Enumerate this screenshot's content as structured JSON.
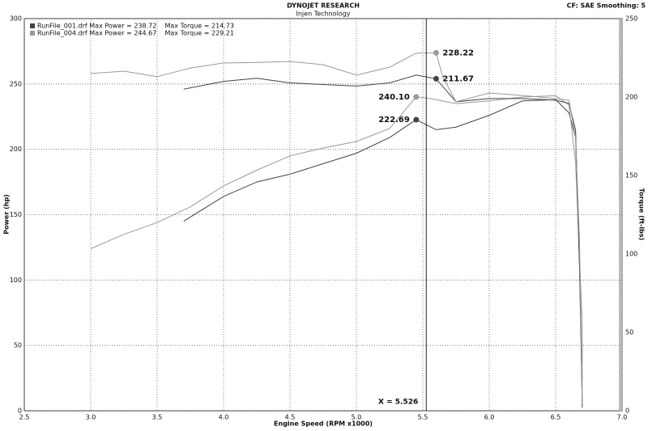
{
  "chart_data": {
    "type": "line",
    "title": "DYNOJET RESEARCH",
    "subtitle": "Injen Technology",
    "corner_note": "CF: SAE  Smoothing: 5",
    "x_label": "Engine Speed (RPM x1000)",
    "y_label": "Power (hp)",
    "y2_label": "Torque (ft-lbs)",
    "xlim": [
      2.5,
      7.0
    ],
    "ylim": [
      0,
      300
    ],
    "y2lim": [
      0,
      250
    ],
    "xticks": [
      {
        "value": 2.5,
        "label": "2.5"
      },
      {
        "value": 3,
        "label": "3.0"
      },
      {
        "value": 3.5,
        "label": "3.5"
      },
      {
        "value": 4,
        "label": "4.0"
      },
      {
        "value": 4.5,
        "label": "4.5"
      },
      {
        "value": 5,
        "label": "5.0"
      },
      {
        "value": 5.5,
        "label": "5.5"
      },
      {
        "value": 6,
        "label": "6.0"
      },
      {
        "value": 6.5,
        "label": "6.5"
      },
      {
        "value": 7,
        "label": "7.0"
      }
    ],
    "yticks": [
      0,
      50,
      100,
      150,
      200,
      250,
      300
    ],
    "y2ticks": [
      0,
      50,
      100,
      150,
      200,
      250
    ],
    "grid": true,
    "legend": [
      {
        "label": "RunFile_001.drf Max Power = 238.72    Max Torque = 214.73",
        "color": "#444444"
      },
      {
        "label": "RunFile_004.drf Max Power = 244.67    Max Torque = 229.21",
        "color": "#999999"
      }
    ],
    "series": [
      {
        "color": "#444444",
        "axis": "y",
        "x": [
          3.7,
          4.0,
          4.25,
          4.5,
          4.75,
          5.0,
          5.25,
          5.45,
          5.6,
          5.75,
          6.0,
          6.25,
          6.5,
          6.6,
          6.65,
          6.68,
          6.7
        ],
        "values": [
          145,
          164,
          175,
          181,
          189,
          197,
          209,
          222.69,
          215,
          217,
          226,
          237,
          238,
          228,
          209,
          110,
          24
        ]
      },
      {
        "color": "#999999",
        "axis": "y",
        "x": [
          3.0,
          3.25,
          3.5,
          3.75,
          4.0,
          4.25,
          4.5,
          4.75,
          5.0,
          5.25,
          5.45,
          5.55,
          5.75,
          6.0,
          6.25,
          6.5,
          6.6,
          6.65,
          6.7,
          6.7
        ],
        "values": [
          124,
          135,
          144,
          156,
          172,
          184,
          195,
          201,
          206,
          216,
          240.1,
          239,
          235,
          237,
          240,
          241,
          234,
          190,
          67,
          5
        ]
      },
      {
        "color": "#444444",
        "axis": "y2",
        "x": [
          3.7,
          4.0,
          4.25,
          4.5,
          4.75,
          5.0,
          5.25,
          5.45,
          5.6,
          5.75,
          6.0,
          6.25,
          6.5,
          6.6,
          6.65,
          6.68,
          6.7
        ],
        "values": [
          205,
          210,
          212,
          209,
          208,
          207,
          209,
          214,
          211.67,
          197,
          199,
          199,
          198,
          196,
          179,
          92,
          2
        ]
      },
      {
        "color": "#999999",
        "axis": "y2",
        "x": [
          3.0,
          3.25,
          3.5,
          3.75,
          4.0,
          4.25,
          4.5,
          4.75,
          5.0,
          5.25,
          5.45,
          5.6,
          5.65,
          5.75,
          6.0,
          6.25,
          6.5,
          6.6,
          6.65,
          6.68,
          6.7
        ],
        "values": [
          215,
          216.5,
          213,
          218.5,
          221.7,
          222,
          222.7,
          220.6,
          214,
          219,
          228,
          228.22,
          213,
          197,
          202.6,
          201,
          199,
          198,
          174,
          107,
          4
        ]
      }
    ],
    "markers": [
      {
        "x": 5.6,
        "value": 228.22,
        "label": "228.22",
        "axis": "y2",
        "color": "#999999",
        "side": "right"
      },
      {
        "x": 5.6,
        "value": 211.67,
        "label": "211.67",
        "axis": "y2",
        "color": "#444444",
        "side": "right"
      },
      {
        "x": 5.45,
        "value": 240.1,
        "label": "240.10",
        "axis": "y",
        "color": "#999999",
        "side": "left"
      },
      {
        "x": 5.45,
        "value": 222.69,
        "label": "222.69",
        "axis": "y",
        "color": "#444444",
        "side": "left"
      }
    ],
    "cursor": {
      "x": 5.526,
      "label": "X = 5.526"
    }
  }
}
